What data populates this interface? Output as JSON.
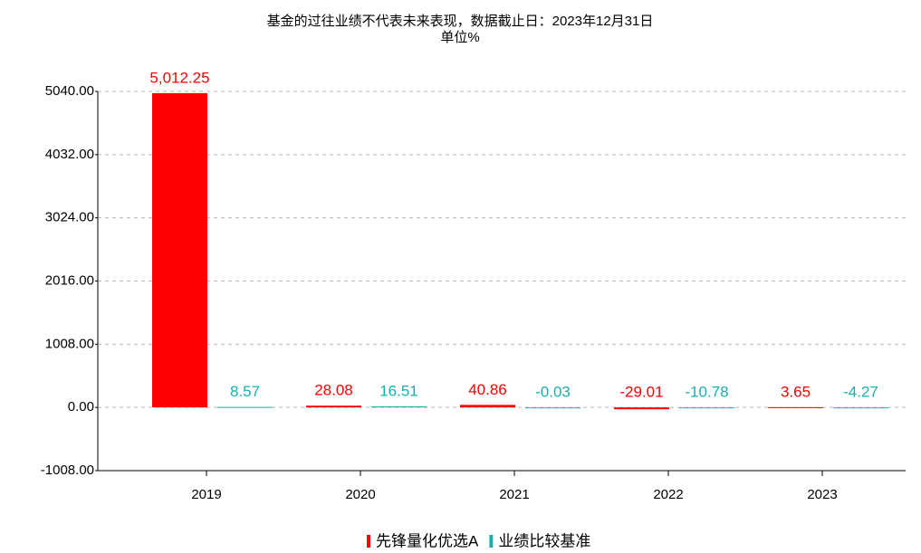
{
  "chart_data": {
    "type": "bar",
    "title": "基金的过往业绩不代表未来表现，数据截止日：2023年12月31日",
    "subtitle": "单位%",
    "categories": [
      "2019",
      "2020",
      "2021",
      "2022",
      "2023"
    ],
    "series": [
      {
        "name": "先锋量化优选A",
        "color": "#ff0000",
        "values": [
          5012.25,
          28.08,
          40.86,
          -29.01,
          3.65
        ],
        "value_labels": [
          "5,012.25",
          "28.08",
          "40.86",
          "-29.01",
          "3.65"
        ]
      },
      {
        "name": "业绩比较基准",
        "color": "#1aafaf",
        "values": [
          8.57,
          16.51,
          -0.03,
          -10.78,
          -4.27
        ],
        "value_labels": [
          "8.57",
          "16.51",
          "-0.03",
          "-10.78",
          "-4.27"
        ]
      }
    ],
    "ylim": [
      -1008,
      5040
    ],
    "yticks": [
      {
        "value": -1008,
        "label": "-1008.00"
      },
      {
        "value": 0,
        "label": "0.00"
      },
      {
        "value": 1008,
        "label": "1008.00"
      },
      {
        "value": 2016,
        "label": "2016.00"
      },
      {
        "value": 3024,
        "label": "3024.00"
      },
      {
        "value": 4032,
        "label": "4032.00"
      },
      {
        "value": 5040,
        "label": "5040.00"
      }
    ],
    "grid": true
  }
}
